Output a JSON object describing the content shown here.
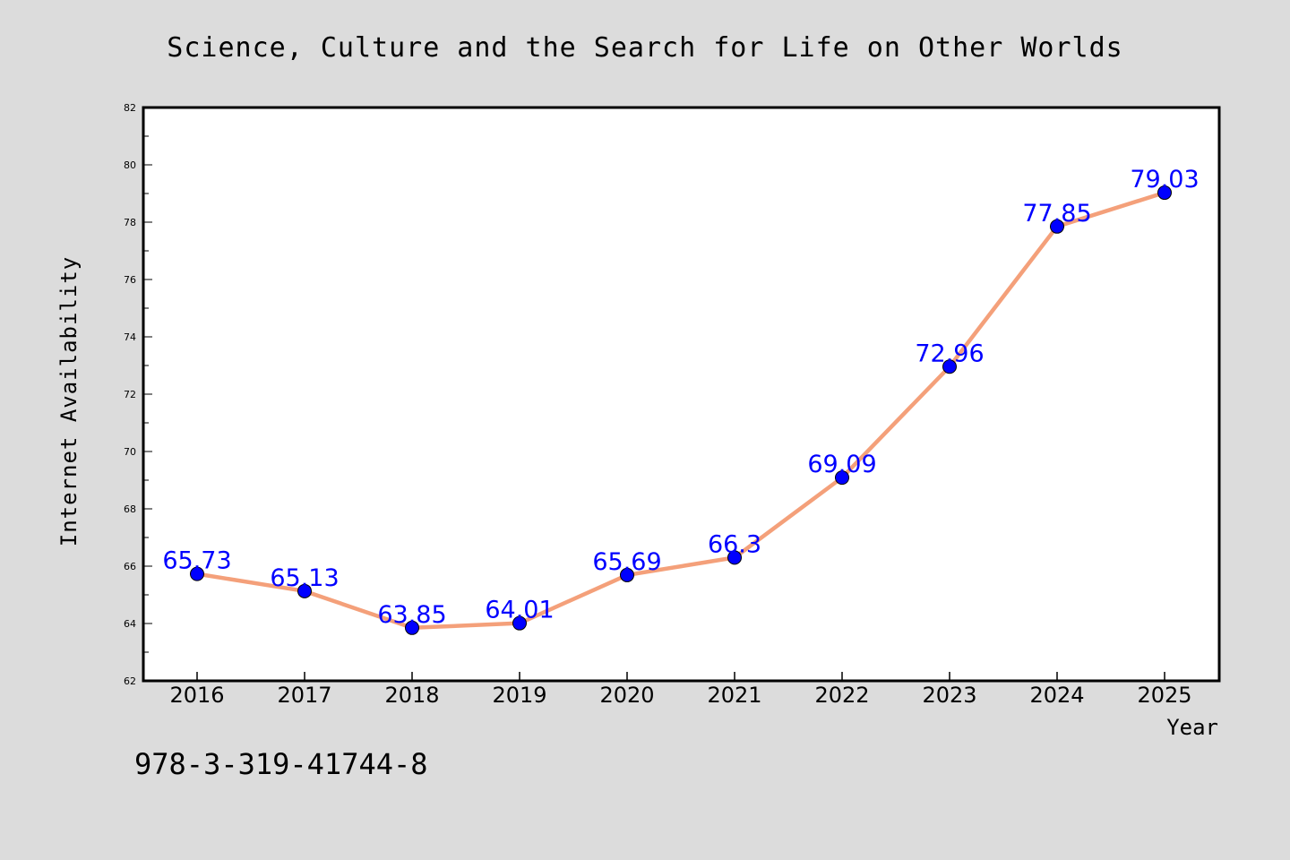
{
  "chart_data": {
    "type": "line",
    "title": "Science, Culture and the Search for Life on Other Worlds",
    "xlabel": "Year",
    "ylabel": "Internet Availability",
    "categories": [
      "2016",
      "2017",
      "2018",
      "2019",
      "2020",
      "2021",
      "2022",
      "2023",
      "2024",
      "2025"
    ],
    "values": [
      65.73,
      65.13,
      63.85,
      64.01,
      65.69,
      66.3,
      69.09,
      72.96,
      77.85,
      79.03
    ],
    "data_labels": [
      "65.73",
      "65.13",
      "63.85",
      "64.01",
      "65.69",
      "66.3",
      "69.09",
      "72.96",
      "77.85",
      "79.03"
    ],
    "ylim": [
      62,
      82
    ],
    "yticks": [
      62,
      64,
      66,
      68,
      70,
      72,
      74,
      76,
      78,
      80,
      82
    ],
    "grid": false,
    "colors": {
      "line": "#f4a07a",
      "marker": "#0000ff",
      "label": "#0000ff",
      "background": "#dcdcdc",
      "plot_background": "#ffffff"
    }
  },
  "footer": {
    "isbn": "978-3-319-41744-8"
  }
}
